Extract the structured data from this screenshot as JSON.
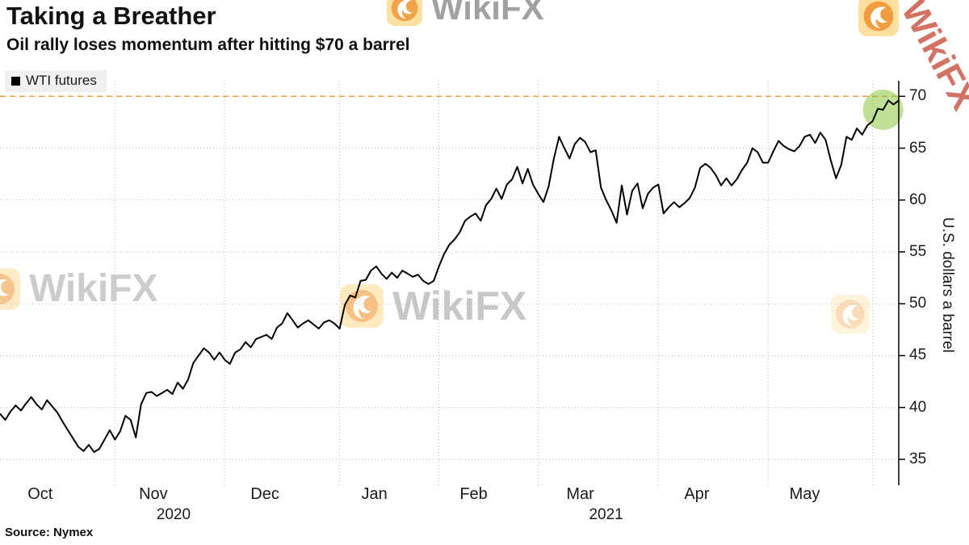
{
  "header": {
    "title": "Taking a Breather",
    "subtitle": "Oil rally loses momentum after hitting $70 a barrel"
  },
  "legend": {
    "series_label": "WTI futures",
    "marker_color": "#000000"
  },
  "source": {
    "text": "Source: Nymex"
  },
  "watermark": {
    "text": "WikiFX",
    "logo_color": "#ef8d1e"
  },
  "chart_data": {
    "type": "line",
    "title": "Taking a Breather",
    "subtitle": "Oil rally loses momentum after hitting $70 a barrel",
    "source": "Nymex",
    "y_axis": {
      "label": "U.S. dollars a barrel",
      "ticks": [
        35,
        40,
        45,
        50,
        55,
        60,
        65,
        70
      ],
      "range": [
        32.5,
        71.5
      ]
    },
    "x_axis": {
      "month_labels": [
        "Oct",
        "Nov",
        "Dec",
        "Jan",
        "Feb",
        "Mar",
        "Apr",
        "May"
      ],
      "month_start_indices": [
        0,
        22,
        43,
        65,
        84,
        103,
        126,
        147,
        167
      ],
      "year_labels": [
        {
          "text": "2020",
          "under_month_index": 1,
          "offset": 25
        },
        {
          "text": "2021",
          "under_month_index": 5,
          "offset": 32
        }
      ]
    },
    "reference_line": {
      "value": 70,
      "color": "#e8a33c",
      "style": "dashed"
    },
    "highlight": {
      "type": "circle",
      "color": "#8dc63f",
      "opacity": 0.55,
      "radius": 25,
      "index_from_end": 4
    },
    "series": [
      {
        "name": "WTI futures",
        "color": "#000000",
        "values": [
          39.4,
          38.8,
          39.6,
          40.2,
          39.7,
          40.4,
          41.0,
          40.3,
          39.8,
          40.7,
          40.1,
          39.5,
          38.6,
          37.8,
          37.0,
          36.2,
          35.8,
          36.4,
          35.7,
          36.0,
          36.9,
          37.8,
          36.9,
          37.7,
          39.2,
          38.8,
          37.1,
          40.3,
          41.4,
          41.5,
          41.1,
          41.4,
          41.7,
          41.3,
          42.4,
          41.8,
          42.7,
          44.3,
          45.0,
          45.7,
          45.3,
          44.6,
          45.3,
          44.6,
          44.2,
          45.3,
          45.6,
          46.3,
          45.8,
          46.6,
          46.8,
          47.0,
          46.6,
          47.7,
          48.1,
          49.1,
          48.4,
          47.7,
          48.1,
          48.4,
          48.0,
          47.6,
          48.2,
          48.4,
          48.1,
          47.6,
          49.9,
          50.8,
          50.6,
          52.2,
          52.3,
          53.2,
          53.6,
          52.9,
          52.4,
          53.0,
          52.5,
          53.2,
          52.9,
          52.6,
          52.8,
          52.2,
          51.9,
          52.2,
          53.6,
          54.8,
          55.7,
          56.2,
          56.9,
          58.0,
          58.4,
          58.7,
          58.0,
          59.5,
          60.1,
          61.1,
          60.1,
          61.5,
          62.0,
          63.2,
          61.6,
          63.0,
          61.5,
          60.6,
          59.8,
          61.3,
          64.0,
          66.1,
          65.0,
          64.0,
          65.4,
          66.0,
          65.6,
          64.6,
          64.8,
          61.2,
          60.0,
          59.0,
          57.8,
          61.4,
          58.6,
          60.9,
          61.6,
          59.2,
          60.6,
          61.2,
          61.5,
          58.7,
          59.3,
          59.8,
          59.3,
          59.7,
          60.2,
          61.2,
          63.1,
          63.5,
          63.1,
          62.4,
          61.4,
          62.1,
          61.4,
          62.0,
          62.9,
          63.6,
          65.0,
          64.6,
          63.6,
          63.6,
          64.7,
          65.7,
          65.2,
          64.9,
          64.7,
          65.2,
          66.1,
          66.3,
          65.5,
          66.5,
          65.8,
          63.8,
          62.1,
          63.4,
          66.1,
          65.8,
          66.9,
          66.3,
          67.2,
          67.6,
          68.8,
          68.7,
          69.6,
          69.2,
          69.6
        ]
      }
    ]
  }
}
